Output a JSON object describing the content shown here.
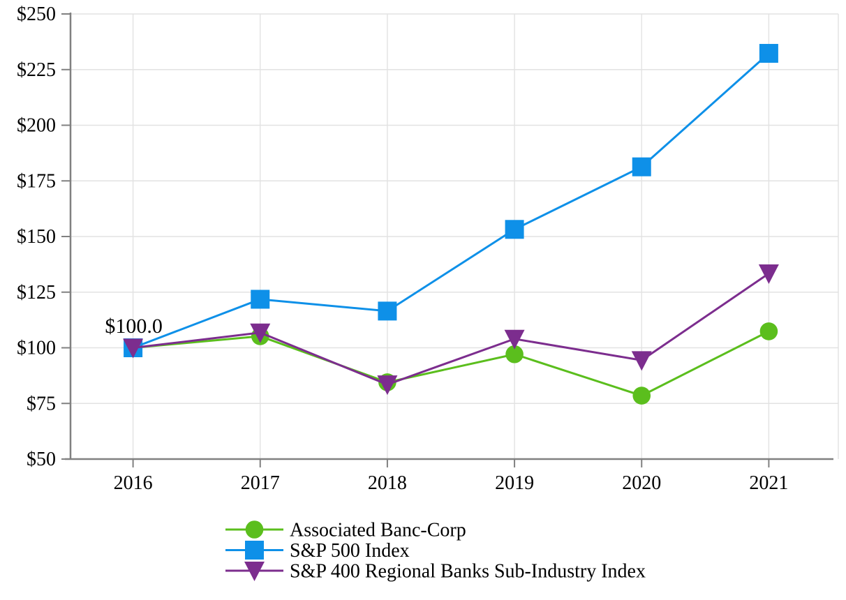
{
  "chart_data": {
    "type": "line",
    "title": "",
    "x": [
      2016,
      2017,
      2018,
      2019,
      2020,
      2021
    ],
    "x_tick_labels": [
      "2016",
      "2017",
      "2018",
      "2019",
      "2020",
      "2021"
    ],
    "y_tick_labels": [
      "$50",
      "$75",
      "$100",
      "$125",
      "$150",
      "$175",
      "$200",
      "$225",
      "$250"
    ],
    "y_ticks": [
      50,
      75,
      100,
      125,
      150,
      175,
      200,
      225,
      250
    ],
    "ylim": [
      50,
      250
    ],
    "y_tick_step": 25,
    "grid": true,
    "legend_position": "bottom",
    "annotation": {
      "text": "$100.0",
      "at_x": "2016",
      "at_value": 100
    },
    "series": [
      {
        "name": "Associated Banc-Corp",
        "marker": "circle",
        "color": "#5bbe1d",
        "values": [
          100.0,
          105.2,
          84.5,
          97.1,
          78.5,
          107.4
        ]
      },
      {
        "name": "S&P 500 Index",
        "marker": "square",
        "color": "#0e90e8",
        "values": [
          100.0,
          121.8,
          116.5,
          153.2,
          181.3,
          232.3
        ]
      },
      {
        "name": "S&P 400 Regional Banks Sub-Industry Index",
        "marker": "triangle-down",
        "color": "#7c2d8e",
        "values": [
          100.0,
          106.8,
          83.5,
          104.0,
          94.4,
          133.4
        ]
      }
    ],
    "colors": {
      "axis": "#808080",
      "gridline": "#e2e2e2",
      "text": "#000000",
      "background": "#ffffff"
    }
  }
}
